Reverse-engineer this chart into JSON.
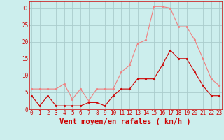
{
  "x": [
    0,
    1,
    2,
    3,
    4,
    5,
    6,
    7,
    8,
    9,
    10,
    11,
    12,
    13,
    14,
    15,
    16,
    17,
    18,
    19,
    20,
    21,
    22,
    23
  ],
  "rafales": [
    6,
    6,
    6,
    6,
    7.5,
    3,
    6,
    2.5,
    6,
    6,
    6,
    11,
    13,
    19.5,
    20.5,
    30.5,
    30.5,
    30,
    24.5,
    24.5,
    20.5,
    15,
    9,
    7
  ],
  "moyen": [
    4,
    1,
    4,
    1,
    1,
    1,
    1,
    2,
    2,
    1,
    4,
    6,
    6,
    9,
    9,
    9,
    13,
    17.5,
    15,
    15,
    11,
    7,
    4,
    4
  ],
  "rafales_color": "#f08080",
  "moyen_color": "#cc0000",
  "bg_color": "#cceeed",
  "grid_color": "#aacccc",
  "xlabel": "Vent moyen/en rafales ( km/h )",
  "xlabel_color": "#cc0000",
  "ylim": [
    0,
    32
  ],
  "yticks": [
    0,
    5,
    10,
    15,
    20,
    25,
    30
  ],
  "xticks": [
    0,
    1,
    2,
    3,
    4,
    5,
    6,
    7,
    8,
    9,
    10,
    11,
    12,
    13,
    14,
    15,
    16,
    17,
    18,
    19,
    20,
    21,
    22,
    23
  ],
  "tick_color": "#cc0000",
  "tick_fontsize": 5.5,
  "xlabel_fontsize": 7.5
}
